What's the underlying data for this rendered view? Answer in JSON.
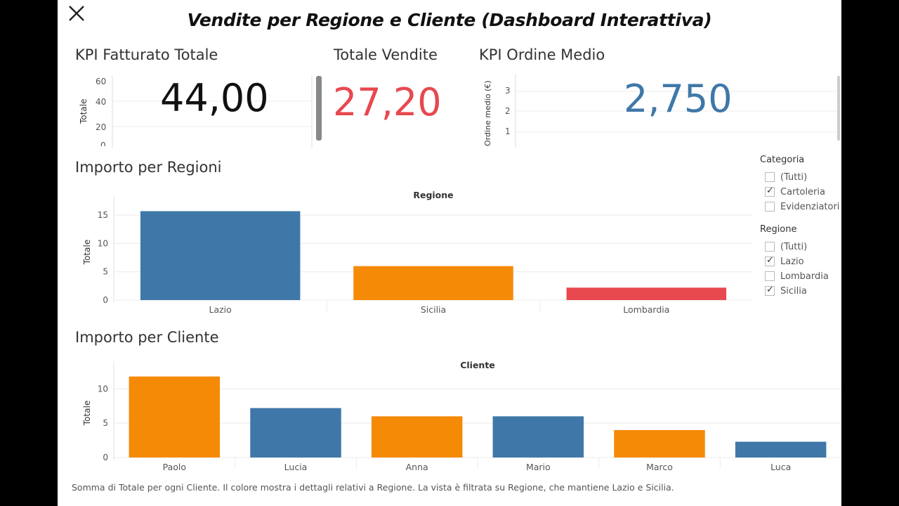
{
  "dashboard": {
    "title": "Vendite per Regione e Cliente (Dashboard Interattiva)"
  },
  "kpi_fatturato": {
    "title": "KPI Fatturato Totale",
    "value": "44,00",
    "y_label": "Totale",
    "ticks": [
      "60",
      "40",
      "20",
      "0"
    ]
  },
  "kpi_vendite": {
    "title": "Totale Vendite",
    "value": "27,20",
    "value_color": "#e8484f"
  },
  "kpi_ordine": {
    "title": "KPI Ordine Medio",
    "value": "2,750",
    "value_color": "#3f78a8",
    "y_label": "Ordine medio (€)",
    "ticks": [
      "3",
      "2",
      "1"
    ]
  },
  "chart_data": [
    {
      "type": "bar",
      "title": "Importo per Regioni",
      "header": "Regione",
      "categories": [
        "Lazio",
        "Sicilia",
        "Lombardia"
      ],
      "values": [
        15.7,
        6.0,
        2.2
      ],
      "colors": [
        "#3f78a8",
        "#f58a07",
        "#e8484f"
      ],
      "ylabel": "Totale",
      "yticks": [
        0,
        5,
        10,
        15
      ],
      "ylim": [
        0,
        17
      ],
      "grid": true
    },
    {
      "type": "bar",
      "title": "Importo per Cliente",
      "header": "Cliente",
      "categories": [
        "Paolo",
        "Lucia",
        "Anna",
        "Mario",
        "Marco",
        "Luca"
      ],
      "values": [
        11.8,
        7.2,
        6.0,
        6.0,
        4.0,
        2.3
      ],
      "colors": [
        "#f58a07",
        "#3f78a8",
        "#f58a07",
        "#3f78a8",
        "#f58a07",
        "#3f78a8"
      ],
      "ylabel": "Totale",
      "yticks": [
        0,
        5,
        10
      ],
      "ylim": [
        0,
        13
      ],
      "grid": true
    }
  ],
  "filters": {
    "categoria": {
      "title": "Categoria",
      "options": [
        {
          "label": "(Tutti)",
          "checked": false
        },
        {
          "label": "Cartoleria",
          "checked": true
        },
        {
          "label": "Evidenziatori",
          "checked": false
        }
      ]
    },
    "regione": {
      "title": "Regione",
      "options": [
        {
          "label": "(Tutti)",
          "checked": false
        },
        {
          "label": "Lazio",
          "checked": true
        },
        {
          "label": "Lombardia",
          "checked": false
        },
        {
          "label": "Sicilia",
          "checked": true
        }
      ]
    }
  },
  "caption": "Somma di Totale per ogni Cliente.  Il colore mostra i dettagli relativi a Regione. La vista è filtrata su Regione, che mantiene Lazio e Sicilia."
}
